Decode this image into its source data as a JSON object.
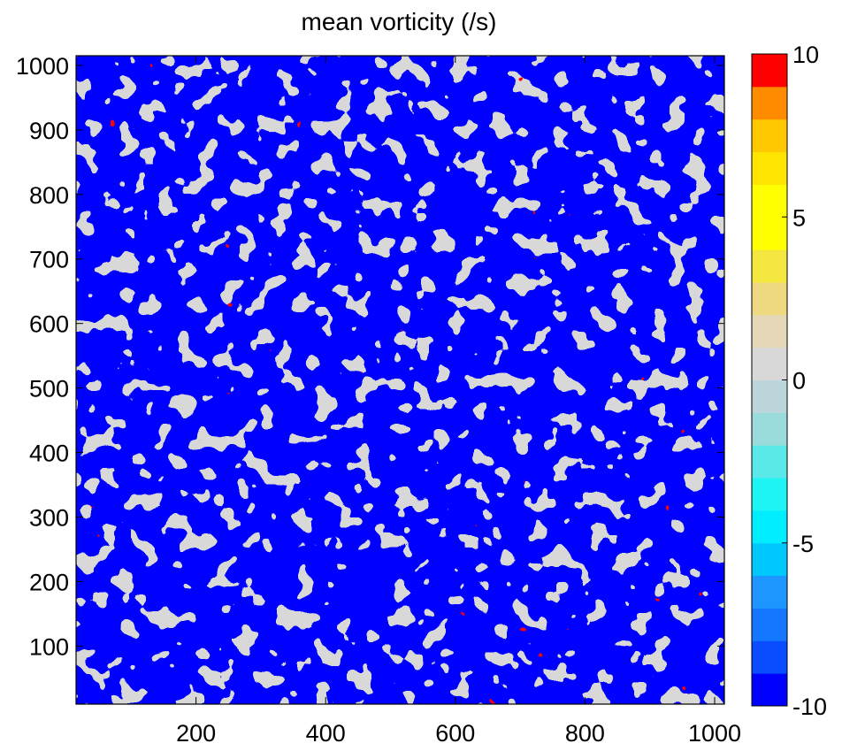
{
  "chart_data": {
    "type": "heatmap",
    "subtype": "filled-contour",
    "title": "mean vorticity (/s)",
    "xlabel": "",
    "ylabel": "",
    "xlim": [
      15,
      1015
    ],
    "ylim": [
      10,
      1015
    ],
    "x_ticks": [
      200,
      400,
      600,
      800,
      1000
    ],
    "y_ticks": [
      100,
      200,
      300,
      400,
      500,
      600,
      700,
      800,
      900,
      1000
    ],
    "colorbar": {
      "range": [
        -10,
        10
      ],
      "ticks": [
        -10,
        -5,
        0,
        5,
        10
      ],
      "levels": [
        {
          "from": -10,
          "to": -9,
          "color": "#0000ff"
        },
        {
          "from": -9,
          "to": -8,
          "color": "#0a4cff"
        },
        {
          "from": -8,
          "to": -7,
          "color": "#1477ff"
        },
        {
          "from": -7,
          "to": -6,
          "color": "#1e96ff"
        },
        {
          "from": -6,
          "to": -5,
          "color": "#00c8ff"
        },
        {
          "from": -5,
          "to": -4,
          "color": "#00eeff"
        },
        {
          "from": -4,
          "to": -3,
          "color": "#1ef4f4"
        },
        {
          "from": -3,
          "to": -2,
          "color": "#5ae8e8"
        },
        {
          "from": -2,
          "to": -1,
          "color": "#9adcdc"
        },
        {
          "from": -1,
          "to": 0,
          "color": "#bcd6dc"
        },
        {
          "from": 0,
          "to": 1,
          "color": "#d8d8d8"
        },
        {
          "from": 1,
          "to": 2,
          "color": "#e4d8b8"
        },
        {
          "from": 2,
          "to": 3,
          "color": "#eed880"
        },
        {
          "from": 3,
          "to": 4,
          "color": "#f4e840"
        },
        {
          "from": 4,
          "to": 5,
          "color": "#ffff00"
        },
        {
          "from": 5,
          "to": 6,
          "color": "#ffff00"
        },
        {
          "from": 6,
          "to": 7,
          "color": "#ffe400"
        },
        {
          "from": 7,
          "to": 8,
          "color": "#ffc800"
        },
        {
          "from": 8,
          "to": 9,
          "color": "#ff8c00"
        },
        {
          "from": 9,
          "to": 10,
          "color": "#ff0000"
        }
      ]
    },
    "field_colors": {
      "negative": "#0000ff",
      "neutral": "#d8d8d8",
      "positive": "#ff0000",
      "contour_line": "#000000"
    },
    "field_description": "noisy vorticity field dominated by strongly negative (blue) and near-zero (grey) regions with scattered small positive (red) patches"
  }
}
